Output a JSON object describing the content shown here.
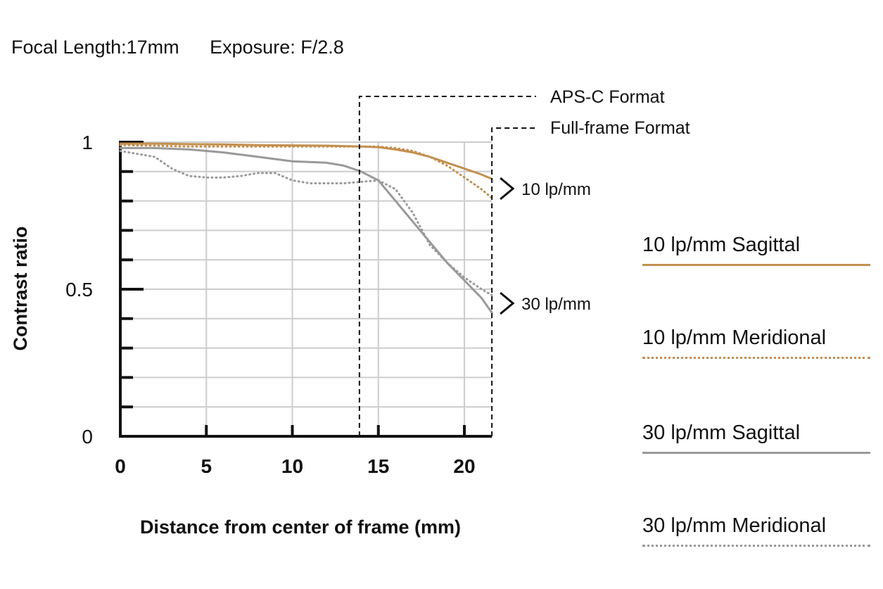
{
  "header": {
    "focal_length": "Focal Length:17mm",
    "exposure": "Exposure: F/2.8"
  },
  "chart_data": {
    "type": "line",
    "xlabel": "Distance from center of frame (mm)",
    "ylabel": "Contrast ratio",
    "xlim": [
      0,
      21.6
    ],
    "ylim": [
      0,
      1
    ],
    "x_ticks": [
      "0",
      "5",
      "10",
      "15",
      "20"
    ],
    "x_tick_values": [
      0,
      5,
      10,
      15,
      20
    ],
    "y_ticks": [
      "0",
      "0.5",
      "1"
    ],
    "y_tick_values": [
      0,
      0.5,
      1
    ],
    "grid": true,
    "markers": [
      {
        "name": "APS-C Format",
        "x": 13.9
      },
      {
        "name": "Full-frame Format",
        "x": 21.6
      }
    ],
    "annotations": [
      {
        "text": "10 lp/mm",
        "group": "10 lp/mm"
      },
      {
        "text": "30 lp/mm",
        "group": "30 lp/mm"
      }
    ],
    "series": [
      {
        "name": "10 lp/mm Sagittal",
        "color": "#c3904f",
        "style": "solid",
        "x": [
          0,
          2,
          4,
          6,
          8,
          10,
          12,
          14,
          15,
          16,
          17,
          18,
          19,
          20,
          21,
          21.6
        ],
        "y": [
          0.995,
          0.995,
          0.993,
          0.992,
          0.99,
          0.989,
          0.988,
          0.985,
          0.983,
          0.975,
          0.965,
          0.95,
          0.93,
          0.91,
          0.89,
          0.875
        ]
      },
      {
        "name": "10 lp/mm Meridional",
        "color": "#c3904f",
        "style": "dotted",
        "x": [
          0,
          2,
          4,
          6,
          8,
          10,
          12,
          14,
          15,
          16,
          17,
          18,
          19,
          20,
          21,
          21.6
        ],
        "y": [
          0.99,
          0.988,
          0.985,
          0.985,
          0.985,
          0.985,
          0.985,
          0.985,
          0.985,
          0.98,
          0.97,
          0.95,
          0.92,
          0.88,
          0.84,
          0.81
        ]
      },
      {
        "name": "30 lp/mm Sagittal",
        "color": "#999999",
        "style": "solid",
        "x": [
          0,
          2,
          4,
          6,
          8,
          10,
          12,
          13,
          14,
          15,
          16,
          17,
          18,
          19,
          20,
          21,
          21.6
        ],
        "y": [
          0.98,
          0.98,
          0.975,
          0.965,
          0.95,
          0.935,
          0.93,
          0.92,
          0.9,
          0.87,
          0.8,
          0.73,
          0.66,
          0.59,
          0.53,
          0.47,
          0.42
        ]
      },
      {
        "name": "30 lp/mm Meridional",
        "color": "#999999",
        "style": "dotted",
        "x": [
          0,
          1,
          2,
          3,
          4,
          5,
          6,
          7,
          8,
          9,
          10,
          11,
          12,
          13,
          14,
          15,
          16,
          17,
          18,
          19,
          20,
          21,
          21.6
        ],
        "y": [
          0.97,
          0.96,
          0.95,
          0.91,
          0.885,
          0.88,
          0.88,
          0.885,
          0.895,
          0.895,
          0.87,
          0.86,
          0.86,
          0.86,
          0.865,
          0.87,
          0.84,
          0.76,
          0.65,
          0.59,
          0.54,
          0.5,
          0.48
        ]
      }
    ]
  }
}
